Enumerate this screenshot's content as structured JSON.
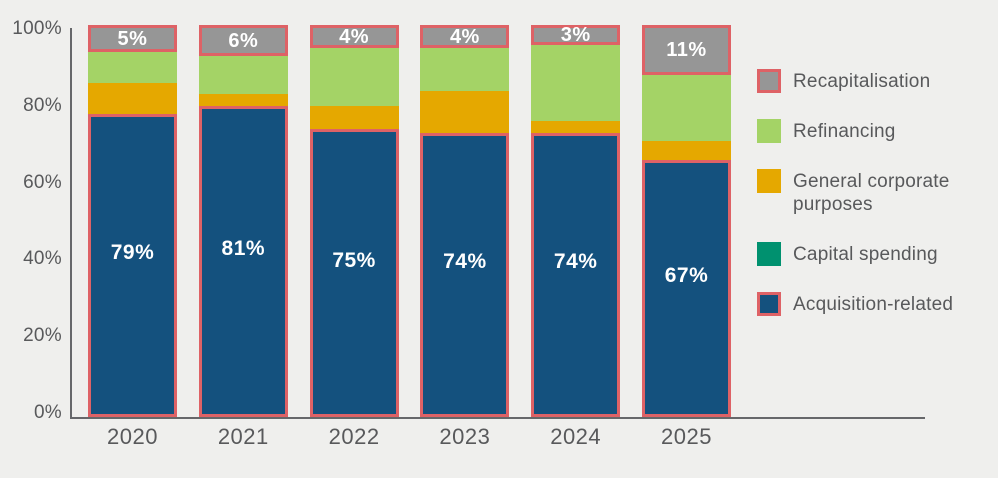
{
  "chart_data": {
    "type": "bar",
    "subtype": "stacked-100-percent",
    "title": "",
    "xlabel": "",
    "ylabel": "",
    "ylim": [
      0,
      100
    ],
    "grid": false,
    "background_color": "#efefed",
    "axis_color": "#66676a",
    "text_color": "#58595b",
    "highlight_border_color": "#de6266",
    "categories": [
      "2020",
      "2021",
      "2022",
      "2023",
      "2024",
      "2025"
    ],
    "series": [
      {
        "name": "Acquisition-related",
        "color": "#14517e",
        "bordered": true,
        "values": [
          79,
          81,
          75,
          74,
          74,
          67
        ],
        "labels": [
          "79%",
          "81%",
          "75%",
          "74%",
          "74%",
          "67%"
        ]
      },
      {
        "name": "Capital spending",
        "color": "#00916f",
        "bordered": false,
        "values": [
          0,
          0,
          0,
          0,
          0,
          0
        ],
        "labels": null
      },
      {
        "name": "General corporate purposes",
        "color": "#e5a800",
        "bordered": false,
        "values": [
          8,
          3,
          6,
          11,
          3,
          5
        ],
        "labels": null
      },
      {
        "name": "Refinancing",
        "color": "#a4d366",
        "bordered": false,
        "values": [
          8,
          10,
          15,
          11,
          20,
          17
        ],
        "labels": null
      },
      {
        "name": "Recapitalisation",
        "color": "#969696",
        "bordered": true,
        "values": [
          5,
          6,
          4,
          4,
          3,
          11
        ],
        "labels": [
          "5%",
          "6%",
          "4%",
          "4%",
          "3%",
          "11%"
        ]
      }
    ],
    "y_axis": {
      "ticks": [
        {
          "label": "100%",
          "value": 100
        },
        {
          "label": "80%",
          "value": 80
        },
        {
          "label": "60%",
          "value": 60
        },
        {
          "label": "40%",
          "value": 40
        },
        {
          "label": "20%",
          "value": 20
        },
        {
          "label": "0%",
          "value": 0
        }
      ]
    },
    "legend": {
      "position": "right",
      "items": [
        {
          "label": "Recapitalisation",
          "color": "#969696",
          "bordered": true
        },
        {
          "label": "Refinancing",
          "color": "#a4d366",
          "bordered": false
        },
        {
          "label": "General corporate purposes",
          "color": "#e5a800",
          "bordered": false
        },
        {
          "label": "Capital spending",
          "color": "#00916f",
          "bordered": false
        },
        {
          "label": "Acquisition-related",
          "color": "#14517e",
          "bordered": true
        }
      ]
    }
  }
}
